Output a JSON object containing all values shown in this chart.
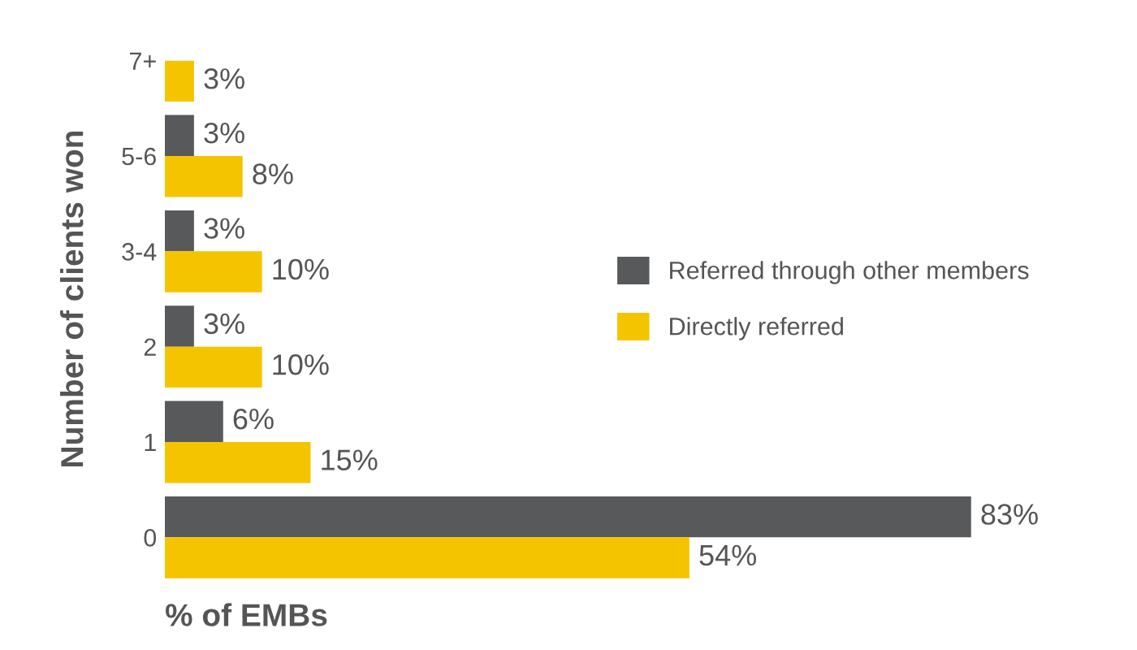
{
  "chart_data": {
    "type": "bar",
    "orientation": "horizontal",
    "xlabel": "% of EMBs",
    "ylabel": "Number of clients won",
    "categories": [
      "7+",
      "5-6",
      "3-4",
      "2",
      "1",
      "0"
    ],
    "series": [
      {
        "name": "Referred through other members",
        "color": "#58595b",
        "values": [
          null,
          3,
          3,
          3,
          6,
          83
        ],
        "value_labels": [
          null,
          "3%",
          "3%",
          "3%",
          "6%",
          "83%"
        ]
      },
      {
        "name": "Directly referred",
        "color": "#f5c400",
        "values": [
          3,
          8,
          10,
          10,
          15,
          54
        ],
        "value_labels": [
          "3%",
          "8%",
          "10%",
          "10%",
          "15%",
          "54%"
        ]
      }
    ],
    "legend": "right",
    "tick_labels": "y",
    "grid": false
  }
}
